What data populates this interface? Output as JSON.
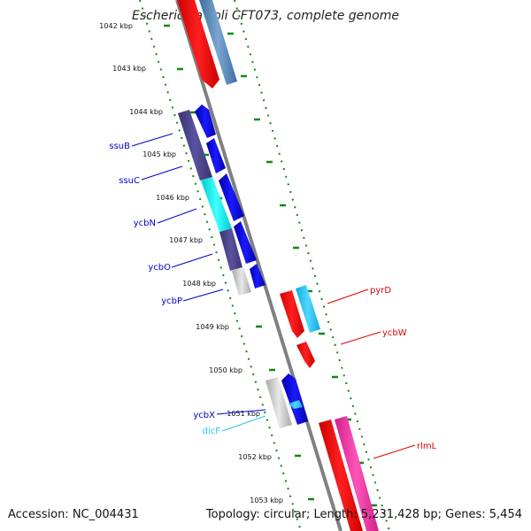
{
  "title": "Escherichia coli CFT073, complete genome",
  "accession_text": "Accession: NC_004431",
  "summary_text": "Topology: circular; Length: 5,231,428 bp; Genes: 5,454",
  "ruler_labels": [
    "1042 kbp",
    "1043 kbp",
    "1044 kbp",
    "1045 kbp",
    "1046 kbp",
    "1047 kbp",
    "1048 kbp",
    "1049 kbp",
    "1050 kbp",
    "1051 kbp",
    "1052 kbp",
    "1053 kbp"
  ],
  "genes": [
    {
      "name": "ssuB",
      "color": "#0000cc"
    },
    {
      "name": "ssuC",
      "color": "#0000cc"
    },
    {
      "name": "ycbN",
      "color": "#0000cc"
    },
    {
      "name": "ycbO",
      "color": "#0000cc"
    },
    {
      "name": "ycbP",
      "color": "#0000cc"
    },
    {
      "name": "pyrD",
      "color": "#e00000"
    },
    {
      "name": "ycbW",
      "color": "#e00000"
    },
    {
      "name": "ycbX",
      "color": "#0000cc"
    },
    {
      "name": "dicF",
      "color": "#22c8e8"
    },
    {
      "name": "rlmL",
      "color": "#e00000"
    }
  ],
  "colors": {
    "backbone": "#808080",
    "forward_cds": "#0000ee",
    "reverse_cds": "#ff0000",
    "tick": "#118811"
  }
}
